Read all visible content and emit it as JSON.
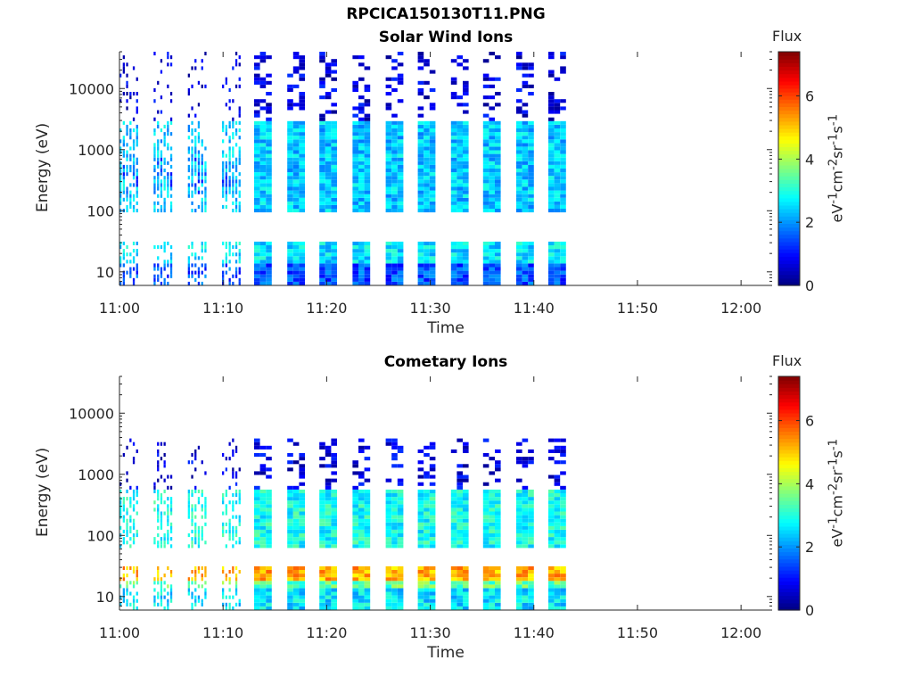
{
  "figure_title": "RPCICA150130T11.PNG",
  "colorbar": {
    "label": "Flux",
    "units_html": "eV<sup>-1</sup>cm<sup>-2</sup>sr<sup>-1</sup>s<sup>-1</sup>",
    "ticks": [
      "0",
      "2",
      "4",
      "6"
    ],
    "range": [
      0,
      7.4
    ],
    "colormap": "jet"
  },
  "chart_data": [
    {
      "type": "heatmap",
      "title": "Solar Wind Ions",
      "xlabel": "Time",
      "ylabel": "Energy (eV)",
      "x_ticks": [
        "11:00",
        "11:10",
        "11:20",
        "11:30",
        "11:40",
        "11:50",
        "12:00"
      ],
      "y_ticks": [
        "10",
        "100",
        "1000",
        "10000"
      ],
      "y_scale": "log",
      "ylim": [
        6,
        40000
      ],
      "xlim_minutes": [
        0,
        63
      ],
      "data_end_minutes": 44,
      "scans_start_minutes": [
        0,
        3.3,
        6.6,
        9.9,
        13.0,
        16.2,
        19.3,
        22.5,
        25.7,
        28.8,
        32.0,
        35.1,
        38.3,
        41.4
      ],
      "bands": [
        {
          "emin": 100,
          "emax": 2800,
          "flux": 2.4,
          "note": "main solar wind distribution"
        },
        {
          "emin": 180,
          "emax": 700,
          "flux": 1.6
        },
        {
          "emin": 2800,
          "emax": 40000,
          "flux": 0.7,
          "note": "sparse high-energy stripes"
        },
        {
          "emin": 14,
          "emax": 32,
          "flux": 2.6,
          "note": "low energy band"
        },
        {
          "emin": 6,
          "emax": 14,
          "flux": 1.5
        }
      ]
    },
    {
      "type": "heatmap",
      "title": "Cometary Ions",
      "xlabel": "Time",
      "ylabel": "Energy (eV)",
      "x_ticks": [
        "11:00",
        "11:10",
        "11:20",
        "11:30",
        "11:40",
        "11:50",
        "12:00"
      ],
      "y_ticks": [
        "10",
        "100",
        "1000",
        "10000"
      ],
      "y_scale": "log",
      "ylim": [
        6,
        40000
      ],
      "xlim_minutes": [
        0,
        63
      ],
      "data_end_minutes": 44,
      "scans_start_minutes": [
        0,
        3.3,
        6.6,
        9.9,
        13.0,
        16.2,
        19.3,
        22.5,
        25.7,
        28.8,
        32.0,
        35.1,
        38.3,
        41.4
      ],
      "bands": [
        {
          "emin": 18,
          "emax": 30,
          "flux": 5.2,
          "note": "strong low energy band"
        },
        {
          "emin": 14,
          "emax": 18,
          "flux": 3.5
        },
        {
          "emin": 6,
          "emax": 14,
          "flux": 2.6
        },
        {
          "emin": 60,
          "emax": 600,
          "flux": 2.9,
          "note": "broad cometary distribution"
        },
        {
          "emin": 600,
          "emax": 4000,
          "flux": 0.7,
          "note": "sparse high-energy stripes"
        }
      ]
    }
  ]
}
